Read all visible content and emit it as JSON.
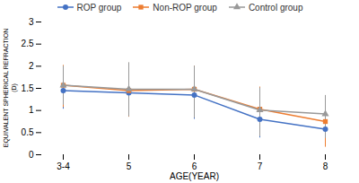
{
  "chart_data": {
    "type": "line",
    "xlabel": "AGE(YEAR)",
    "ylabel": "EQUIVALENT SPHERICAL REFRACTION\n(D)",
    "categories": [
      "3-4",
      "5",
      "6",
      "7",
      "8"
    ],
    "series": [
      {
        "name": "ROP group",
        "color": "#4472C4",
        "marker": "circle",
        "values": [
          1.45,
          1.4,
          1.35,
          0.8,
          0.58
        ],
        "yerr_lower": [
          0.42,
          0.55,
          0.55,
          0.42,
          0.22
        ],
        "yerr_upper": [
          0.52,
          0.65,
          0.65,
          0.72,
          0.52
        ]
      },
      {
        "name": "Non-ROP group",
        "color": "#ED7D31",
        "marker": "square",
        "values": [
          1.57,
          1.45,
          1.48,
          1.03,
          0.75
        ],
        "yerr_lower": [
          0.5,
          0.6,
          0.65,
          0.6,
          0.58
        ],
        "yerr_upper": [
          0.45,
          0.62,
          0.52,
          0.5,
          0.4
        ]
      },
      {
        "name": "Control group",
        "color": "#999999",
        "marker": "triangle",
        "values": [
          1.57,
          1.48,
          1.48,
          1.01,
          0.92
        ],
        "yerr_lower": [
          0.45,
          0.62,
          0.65,
          0.6,
          0.55
        ],
        "yerr_upper": [
          0.43,
          0.6,
          0.52,
          0.5,
          0.42
        ]
      }
    ],
    "ylim": [
      0,
      3
    ],
    "yticks": [
      0,
      0.5,
      1,
      1.5,
      2,
      2.5,
      3
    ],
    "grid": false,
    "legend": "top"
  }
}
